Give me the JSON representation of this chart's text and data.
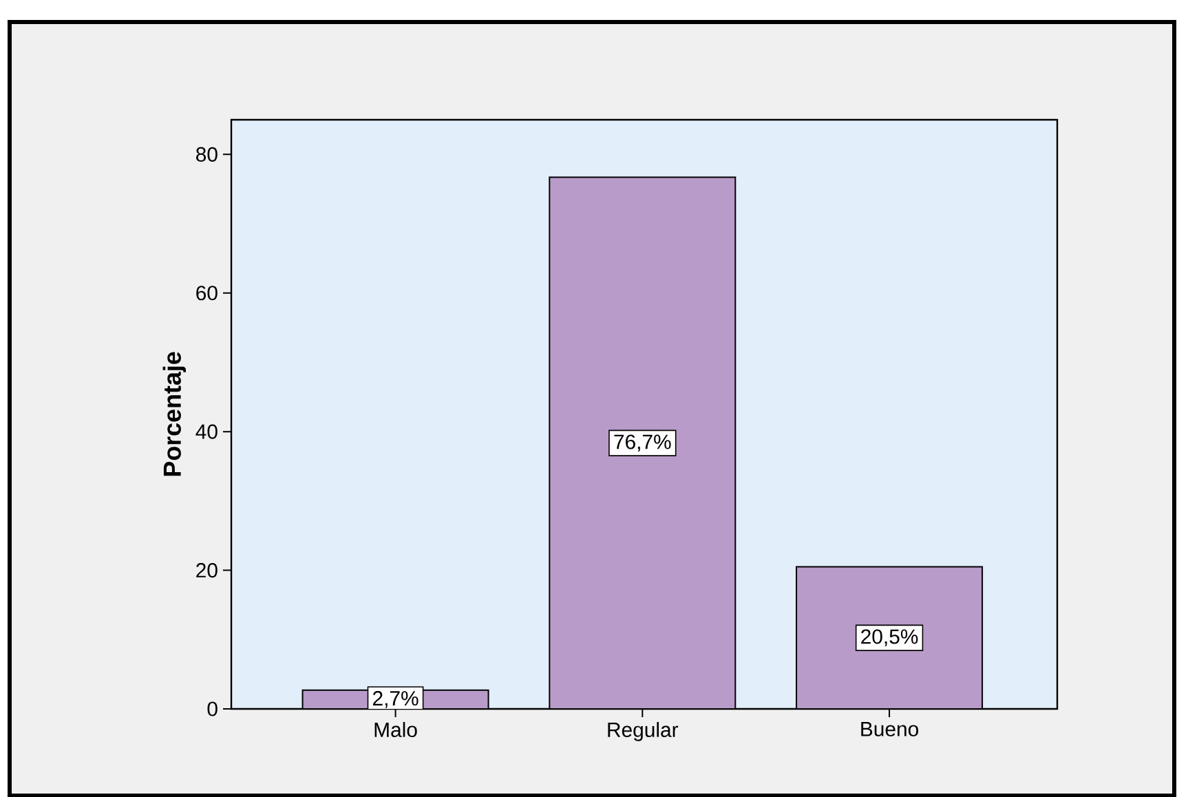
{
  "chart_data": {
    "type": "bar",
    "ylabel": "Porcentaje",
    "categories": [
      "Malo",
      "Regular",
      "Bueno"
    ],
    "values": [
      2.7,
      76.7,
      20.5
    ],
    "value_labels": [
      "2,7%",
      "76,7%",
      "20,5%"
    ],
    "color": "#b89bc8",
    "ylim": [
      0,
      85
    ],
    "yticks": [
      0,
      20,
      40,
      60,
      80
    ],
    "grid": false
  }
}
